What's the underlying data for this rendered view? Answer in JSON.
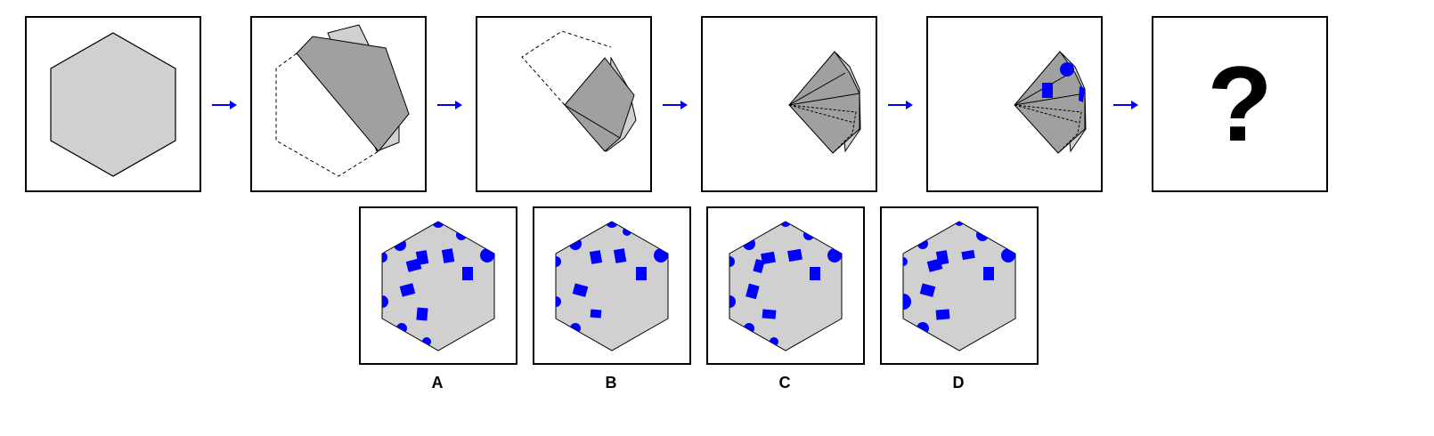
{
  "puzzle": {
    "question_mark": "?",
    "options": [
      {
        "label": "A"
      },
      {
        "label": "B"
      },
      {
        "label": "C"
      },
      {
        "label": "D"
      }
    ]
  },
  "colors": {
    "fill_light": "#d0d0d0",
    "fill_dark": "#a0a0a0",
    "marker_blue": "#0000ff",
    "arrow_blue": "#0000ff",
    "outline": "#000000"
  },
  "icons": {
    "arrow": "right-arrow-icon",
    "question": "question-mark"
  }
}
